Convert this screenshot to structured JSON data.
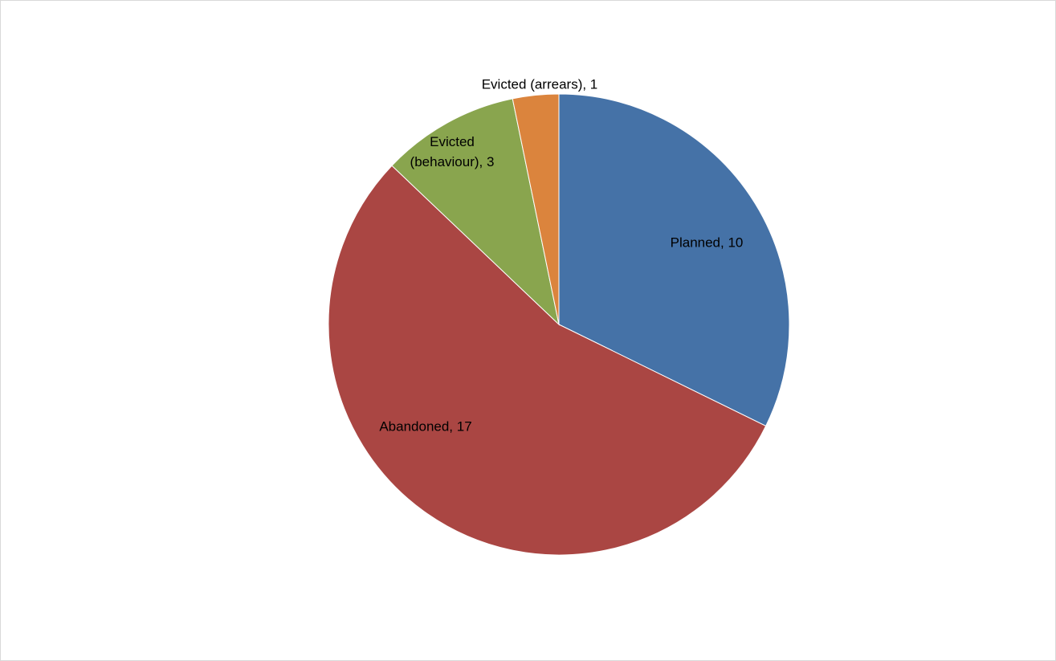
{
  "chart_data": {
    "type": "pie",
    "slices": [
      {
        "name": "Planned",
        "value": 10,
        "color": "#4572A7",
        "label": [
          "Planned, 10"
        ]
      },
      {
        "name": "Abandoned",
        "value": 17,
        "color": "#AA4643",
        "label": [
          "Abandoned, 17"
        ]
      },
      {
        "name": "Evicted (behaviour)",
        "value": 3,
        "color": "#89A54E",
        "label": [
          "Evicted",
          "(behaviour), 3"
        ]
      },
      {
        "name": "Evicted (arrears)",
        "value": 1,
        "color": "#DB843D",
        "label": [
          "Evicted (arrears), 1"
        ]
      }
    ],
    "start_angle_deg": 0,
    "direction": "clockwise",
    "legend": "none"
  }
}
